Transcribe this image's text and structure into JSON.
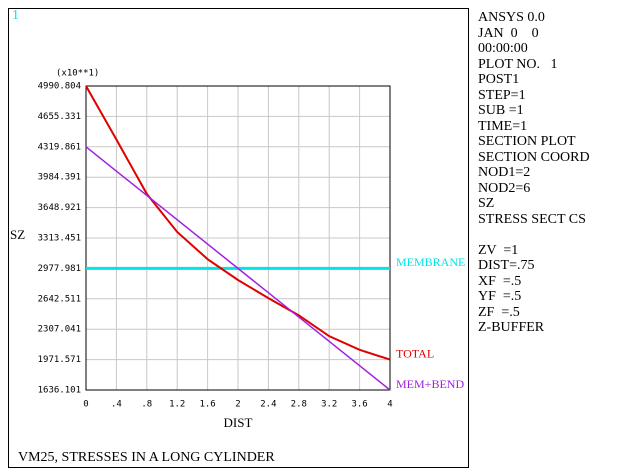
{
  "window_number": "1",
  "footer_title": "VM25, STRESSES IN A LONG CYLINDER",
  "info_panel": [
    "ANSYS 0.0",
    "JAN  0    0",
    "00:00:00",
    "PLOT NO.   1",
    "POST1",
    "STEP=1",
    "SUB =1",
    "TIME=1",
    "SECTION PLOT",
    "SECTION COORD",
    "NOD1=2",
    "NOD2=6",
    "SZ",
    "STRESS SECT CS",
    "",
    "ZV  =1",
    "DIST=.75",
    "XF  =.5",
    "YF  =.5",
    "ZF  =.5",
    "Z-BUFFER"
  ],
  "chart_data": {
    "type": "line",
    "multiplier_label": "(x10**1)",
    "ylabel": "SZ",
    "xlabel": "DIST",
    "xlim": [
      0,
      4
    ],
    "ylim": [
      1636.101,
      4990.804
    ],
    "yticks": [
      1636.101,
      1971.571,
      2307.041,
      2642.511,
      2977.981,
      3313.451,
      3648.921,
      3984.391,
      4319.861,
      4655.331,
      4990.804
    ],
    "xticks": [
      0,
      {
        "value": 0.4,
        "label": ".4"
      },
      {
        "value": 0.8,
        "label": ".8"
      },
      1.2,
      1.6,
      2,
      2.4,
      2.8,
      3.2,
      3.6,
      4
    ],
    "grid": true,
    "series": [
      {
        "name": "MEMBRANE",
        "color": "#00e5e5",
        "x": [
          0,
          4
        ],
        "values": [
          2977.981,
          2977.981
        ]
      },
      {
        "name": "TOTAL",
        "color": "#e00000",
        "x": [
          0,
          0.4,
          0.8,
          1.2,
          1.6,
          2,
          2.4,
          2.8,
          3.2,
          3.6,
          4
        ],
        "values": [
          4990.804,
          4400,
          3800,
          3380,
          3080,
          2850,
          2650,
          2460,
          2230,
          2080,
          1971.571
        ]
      },
      {
        "name": "MEM+BEND",
        "color": "#a020e0",
        "x": [
          0,
          4
        ],
        "values": [
          4319.861,
          1636.101
        ]
      }
    ]
  }
}
